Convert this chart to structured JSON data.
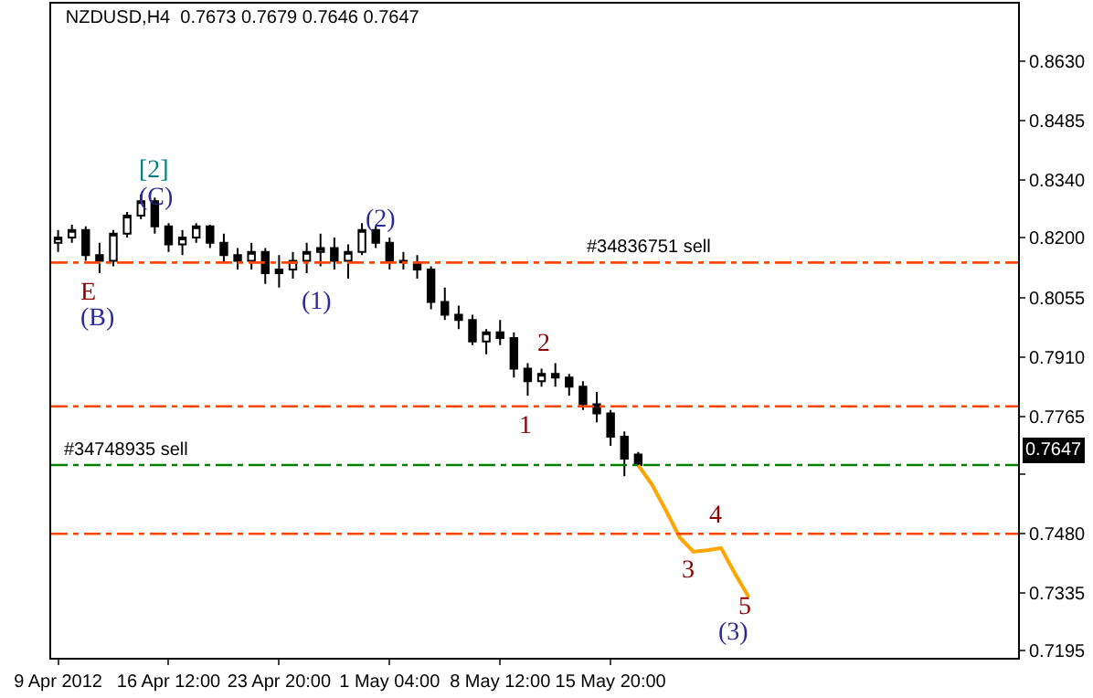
{
  "chart_data": {
    "type": "candlestick",
    "title": "NZDUSD,H4  0.7673 0.7679 0.7646 0.7647",
    "color": "#000000",
    "categories": [
      "9 Apr 2012",
      null,
      null,
      null,
      null,
      null,
      null,
      null,
      "16 Apr 12:00",
      null,
      null,
      null,
      null,
      null,
      null,
      null,
      "23 Apr 20:00",
      null,
      null,
      null,
      null,
      null,
      null,
      null,
      "1 May 04:00",
      null,
      null,
      null,
      null,
      null,
      null,
      null,
      "8 May 12:00",
      null,
      null,
      null,
      null,
      null,
      null,
      null,
      "15 May 20:00",
      null,
      null,
      null,
      null,
      null,
      null,
      null,
      null,
      null,
      null,
      null,
      null,
      null,
      null,
      null,
      null,
      null,
      null,
      null,
      null,
      null,
      null,
      null,
      null,
      null,
      null,
      null,
      null,
      null
    ],
    "ohlc": [
      [
        0.8188,
        0.8219,
        0.8166,
        0.8201
      ],
      [
        0.8201,
        0.8232,
        0.8188,
        0.8219
      ],
      [
        0.8219,
        0.8228,
        0.8144,
        0.8158
      ],
      [
        0.8158,
        0.8188,
        0.8114,
        0.8144
      ],
      [
        0.8144,
        0.8219,
        0.8131,
        0.821
      ],
      [
        0.821,
        0.8263,
        0.8201,
        0.8254
      ],
      [
        0.8254,
        0.8306,
        0.8245,
        0.8289
      ],
      [
        0.8289,
        0.8298,
        0.821,
        0.8228
      ],
      [
        0.8228,
        0.8236,
        0.8166,
        0.8184
      ],
      [
        0.8184,
        0.8219,
        0.8158,
        0.8201
      ],
      [
        0.8201,
        0.8236,
        0.8188,
        0.8228
      ],
      [
        0.8228,
        0.8232,
        0.8175,
        0.8188
      ],
      [
        0.8188,
        0.821,
        0.814,
        0.8158
      ],
      [
        0.8158,
        0.8175,
        0.8123,
        0.8144
      ],
      [
        0.8144,
        0.8188,
        0.8123,
        0.8166
      ],
      [
        0.8166,
        0.8175,
        0.8088,
        0.8114
      ],
      [
        0.8114,
        0.8158,
        0.8079,
        0.8123
      ],
      [
        0.8123,
        0.8166,
        0.8101,
        0.8144
      ],
      [
        0.8144,
        0.8188,
        0.8114,
        0.8166
      ],
      [
        0.8166,
        0.821,
        0.8131,
        0.8175
      ],
      [
        0.8175,
        0.8201,
        0.8123,
        0.8144
      ],
      [
        0.8144,
        0.8184,
        0.8101,
        0.8166
      ],
      [
        0.8166,
        0.8236,
        0.8158,
        0.8219
      ],
      [
        0.8219,
        0.8228,
        0.8175,
        0.8188
      ],
      [
        0.8188,
        0.8201,
        0.8123,
        0.8144
      ],
      [
        0.8144,
        0.8166,
        0.8123,
        0.814
      ],
      [
        0.814,
        0.8158,
        0.8101,
        0.8123
      ],
      [
        0.8123,
        0.8131,
        0.8026,
        0.8044
      ],
      [
        0.8044,
        0.8079,
        0.8,
        0.8013
      ],
      [
        0.8013,
        0.8035,
        0.7978,
        0.8
      ],
      [
        0.8,
        0.8013,
        0.7939,
        0.7948
      ],
      [
        0.7948,
        0.7978,
        0.7917,
        0.797
      ],
      [
        0.797,
        0.8,
        0.7939,
        0.7956
      ],
      [
        0.7956,
        0.797,
        0.786,
        0.7882
      ],
      [
        0.7882,
        0.7895,
        0.7816,
        0.7851
      ],
      [
        0.7851,
        0.7882,
        0.7838,
        0.7869
      ],
      [
        0.7869,
        0.7895,
        0.7838,
        0.786
      ],
      [
        0.786,
        0.7869,
        0.7816,
        0.7838
      ],
      [
        0.7838,
        0.7851,
        0.7781,
        0.7795
      ],
      [
        0.7795,
        0.7825,
        0.7751,
        0.7773
      ],
      [
        0.7773,
        0.7781,
        0.7694,
        0.7716
      ],
      [
        0.7716,
        0.7729,
        0.762,
        0.7663
      ],
      [
        0.7673,
        0.7679,
        0.7646,
        0.7647
      ],
      null,
      null,
      null,
      null,
      null,
      null,
      null,
      null,
      null,
      null,
      null,
      null,
      null,
      null,
      null,
      null,
      null,
      null,
      null,
      null,
      null,
      null,
      null,
      null,
      null,
      null,
      null
    ],
    "series": [
      {
        "type": "line",
        "color": "#ffa500",
        "values": [
          null,
          null,
          null,
          null,
          null,
          null,
          null,
          null,
          null,
          null,
          null,
          null,
          null,
          null,
          null,
          null,
          null,
          null,
          null,
          null,
          null,
          null,
          null,
          null,
          null,
          null,
          null,
          null,
          null,
          null,
          null,
          null,
          null,
          null,
          null,
          null,
          null,
          null,
          null,
          null,
          null,
          null,
          0.7647,
          0.7599,
          0.7537,
          0.7471,
          0.7436,
          0.744,
          0.7445,
          0.7383,
          0.7326,
          null,
          null,
          null,
          null,
          null,
          null,
          null,
          null,
          null,
          null,
          null,
          null,
          null,
          null,
          null,
          null,
          null,
          null,
          null
        ]
      }
    ],
    "ylim": [
      0.7178,
      0.877
    ],
    "yticks": [
      0.7195,
      0.7335,
      {
        "value": 0.748,
        "label": "0.7480"
      },
      {
        "value": 0.7625,
        "label": null
      },
      0.7765,
      {
        "value": 0.791,
        "label": "0.7910"
      },
      0.8055,
      {
        "value": 0.82,
        "label": "0.8200"
      },
      {
        "value": 0.834,
        "label": "0.8340"
      },
      0.8485,
      {
        "value": 0.863,
        "label": "0.8630"
      }
    ],
    "ref_lines": [
      {
        "axis": "y",
        "value": 0.814,
        "label": "#34836751 sell",
        "color": "#ff4500",
        "line_style": "dashdot"
      },
      {
        "axis": "y",
        "value": 0.779,
        "label": null,
        "color": "#ff4500",
        "line_style": "dashdot"
      },
      {
        "axis": "y",
        "value": 0.7647,
        "label": "#34748935 sell",
        "color": "#008000",
        "line_style": "dashdot"
      },
      {
        "axis": "y",
        "value": 0.748,
        "label": null,
        "color": "#ff4500",
        "line_style": "dashdot"
      }
    ],
    "annotations": [
      "[2]",
      "(C)",
      "E",
      "(B)",
      "(1)",
      "(2)",
      "2",
      "1",
      "3",
      "4",
      "5",
      "(3)",
      "0.7647"
    ],
    "grid": false
  }
}
